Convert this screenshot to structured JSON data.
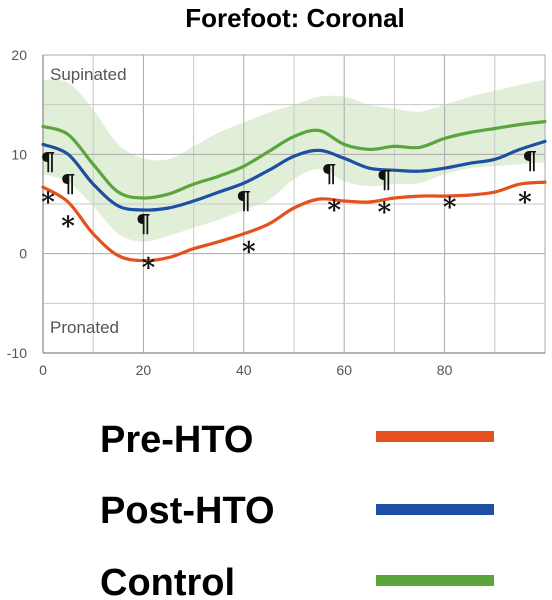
{
  "colors": {
    "pre": "#e4501e",
    "post": "#1d4fa3",
    "control": "#5aa53c",
    "band": "#dcecd2",
    "grid": "#c8c8c8",
    "axis": "#888888"
  },
  "chart_data": {
    "type": "line",
    "title": "Forefoot: Coronal",
    "xlim": [
      0,
      100
    ],
    "ylim": [
      -10,
      20
    ],
    "x_ticks": [
      "0",
      "20",
      "40",
      "60",
      "80"
    ],
    "y_ticks": [
      "20",
      "10",
      "0",
      "-10"
    ],
    "grid": true,
    "region_labels": {
      "top": "Supinated",
      "bottom": "Pronated"
    },
    "series": [
      {
        "name": "Pre-HTO",
        "color_key": "pre",
        "x": [
          0,
          5,
          10,
          15,
          20,
          25,
          30,
          35,
          40,
          45,
          50,
          55,
          60,
          65,
          70,
          75,
          80,
          85,
          90,
          95,
          100
        ],
        "y": [
          6.7,
          5.2,
          2.0,
          -0.2,
          -0.7,
          -0.4,
          0.5,
          1.2,
          2.0,
          3.0,
          4.6,
          5.5,
          5.3,
          5.2,
          5.6,
          5.8,
          5.8,
          5.9,
          6.2,
          7.0,
          7.2
        ]
      },
      {
        "name": "Post-HTO",
        "color_key": "post",
        "x": [
          0,
          5,
          10,
          15,
          20,
          25,
          30,
          35,
          40,
          45,
          50,
          55,
          60,
          65,
          70,
          75,
          80,
          85,
          90,
          95,
          100
        ],
        "y": [
          11.0,
          10.0,
          7.0,
          4.8,
          4.4,
          4.6,
          5.3,
          6.2,
          7.1,
          8.4,
          9.8,
          10.4,
          9.6,
          8.6,
          8.4,
          8.3,
          8.6,
          9.1,
          9.5,
          10.5,
          11.3
        ]
      },
      {
        "name": "Control",
        "color_key": "control",
        "x": [
          0,
          5,
          10,
          15,
          20,
          25,
          30,
          35,
          40,
          45,
          50,
          55,
          60,
          65,
          70,
          75,
          80,
          85,
          90,
          95,
          100
        ],
        "y": [
          12.8,
          12.0,
          9.0,
          6.2,
          5.6,
          6.0,
          7.0,
          7.8,
          8.8,
          10.3,
          11.8,
          12.4,
          11.0,
          10.5,
          10.8,
          10.7,
          11.6,
          12.2,
          12.6,
          13.0,
          13.3
        ],
        "band_upper": [
          17.5,
          17.2,
          14.5,
          11.0,
          9.6,
          9.5,
          10.8,
          12.2,
          13.2,
          14.2,
          15.0,
          15.8,
          15.8,
          15.0,
          14.6,
          14.3,
          15.0,
          15.8,
          16.4,
          17.0,
          17.5
        ],
        "band_lower": [
          8.0,
          7.2,
          4.8,
          2.0,
          1.2,
          1.8,
          2.6,
          3.4,
          4.4,
          5.4,
          7.5,
          8.5,
          7.3,
          6.8,
          7.0,
          7.1,
          8.0,
          8.6,
          8.8,
          9.0,
          9.2
        ]
      }
    ],
    "annotations": [
      {
        "text": "¶",
        "x": 1,
        "y": 8.4
      },
      {
        "text": "¶",
        "x": 5,
        "y": 6.2
      },
      {
        "text": "¶",
        "x": 20,
        "y": 2.2
      },
      {
        "text": "¶",
        "x": 40,
        "y": 4.5
      },
      {
        "text": "¶",
        "x": 57,
        "y": 7.2
      },
      {
        "text": "¶",
        "x": 68,
        "y": 6.6
      },
      {
        "text": "¶",
        "x": 97,
        "y": 8.5
      },
      {
        "text": "*",
        "x": 1,
        "y": 4.3
      },
      {
        "text": "*",
        "x": 5,
        "y": 1.9
      },
      {
        "text": "*",
        "x": 21,
        "y": -2.3
      },
      {
        "text": "*",
        "x": 41,
        "y": -0.7
      },
      {
        "text": "*",
        "x": 58,
        "y": 3.5
      },
      {
        "text": "*",
        "x": 68,
        "y": 3.3
      },
      {
        "text": "*",
        "x": 81,
        "y": 3.8
      },
      {
        "text": "*",
        "x": 96,
        "y": 4.3
      }
    ]
  }
}
